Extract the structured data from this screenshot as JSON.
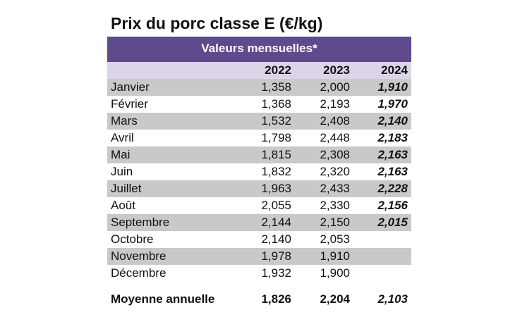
{
  "title": "Prix du porc classe E (€/kg)",
  "table": {
    "caption": "Valeurs mensuelles*",
    "columns": [
      "2022",
      "2023",
      "2024"
    ],
    "rows": [
      [
        "Janvier",
        "1,358",
        "2,000",
        "1,910"
      ],
      [
        "Février",
        "1,368",
        "2,193",
        "1,970"
      ],
      [
        "Mars",
        "1,532",
        "2,408",
        "2,140"
      ],
      [
        "Avril",
        "1,798",
        "2,448",
        "2,183"
      ],
      [
        "Mai",
        "1,815",
        "2,308",
        "2,163"
      ],
      [
        "Juin",
        "1,832",
        "2,320",
        "2,163"
      ],
      [
        "Juillet",
        "1,963",
        "2,433",
        "2,228"
      ],
      [
        "Août",
        "2,055",
        "2,330",
        "2,156"
      ],
      [
        "Septembre",
        "2,144",
        "2,150",
        "2,015"
      ],
      [
        "Octobre",
        "2,140",
        "2,053"
      ],
      [
        "Novembre",
        "1,978",
        "1,910"
      ],
      [
        "Décembre",
        "1,932",
        "1,900"
      ]
    ],
    "footer": [
      "Moyenne annuelle",
      "1,826",
      "2,204",
      "2,103"
    ]
  }
}
